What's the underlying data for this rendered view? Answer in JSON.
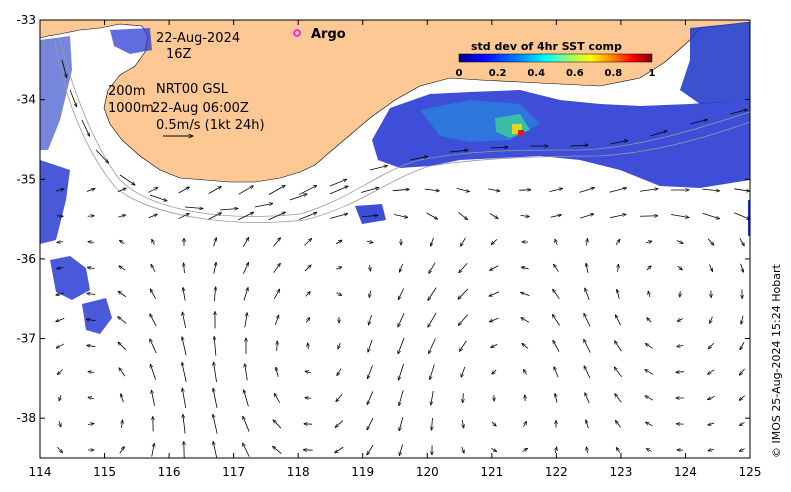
{
  "map": {
    "lon_ticks": [
      "114",
      "115",
      "116",
      "117",
      "118",
      "119",
      "120",
      "121",
      "122",
      "123",
      "124",
      "125"
    ],
    "lat_ticks": [
      "-33",
      "-34",
      "-35",
      "-36",
      "-37",
      "-38"
    ],
    "lon_range": [
      114,
      125
    ],
    "lat_range": [
      -38.5,
      -33
    ],
    "land_color": "#fdc893",
    "ocean_color": "#ffffff"
  },
  "annotations": {
    "date": "22-Aug-2024",
    "hour": "16Z",
    "argo_label": "Argo",
    "line1_depth": "200m",
    "line1_label": "NRT00 GSL",
    "line2_depth": "1000m",
    "line2_label": "22-Aug 06:00Z",
    "scale_label": "0.5m/s (1kt 24h)"
  },
  "colorbar": {
    "title": "std dev of 4hr SST comp",
    "ticks": [
      "0",
      "0.2",
      "0.4",
      "0.6",
      "0.8",
      "1"
    ],
    "colors": [
      "#00007f",
      "#0000ff",
      "#007fff",
      "#00ffff",
      "#7fff7f",
      "#ffff00",
      "#ff7f00",
      "#ff0000",
      "#7f0000"
    ]
  },
  "credit": "© IMOS 25-Aug-2024 15:24 Hobart"
}
